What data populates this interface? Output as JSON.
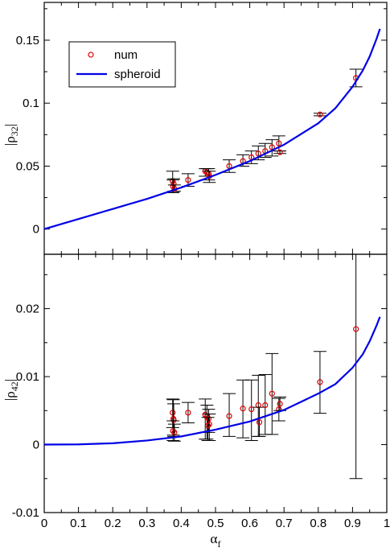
{
  "chart_data": [
    {
      "type": "scatter",
      "panel": "top",
      "title": "",
      "xlabel": "αf",
      "ylabel": "|ρ32|",
      "xlim": [
        0,
        1
      ],
      "ylim": [
        -0.02,
        0.18
      ],
      "xticks": [
        "",
        "",
        "",
        "",
        "",
        "",
        "",
        "",
        "",
        "",
        ""
      ],
      "yticks": [
        {
          "v": 0,
          "label": "0"
        },
        {
          "v": 0.05,
          "label": "0.05"
        },
        {
          "v": 0.1,
          "label": "0.1"
        },
        {
          "v": 0.15,
          "label": "0.15"
        }
      ],
      "legend": {
        "position": "top-left",
        "entries": [
          {
            "label": "num",
            "kind": "marker",
            "color": "#e00000"
          },
          {
            "label": "spheroid",
            "kind": "line",
            "color": "#0000e6"
          }
        ]
      },
      "series": [
        {
          "name": "num",
          "kind": "scatter-errorbars",
          "color": "#e00000",
          "points": [
            {
              "x": 0.375,
              "y": 0.038,
              "lo": 0.029,
              "hi": 0.046
            },
            {
              "x": 0.378,
              "y": 0.036,
              "lo": 0.03,
              "hi": 0.04
            },
            {
              "x": 0.376,
              "y": 0.034,
              "lo": 0.029,
              "hi": 0.039
            },
            {
              "x": 0.38,
              "y": 0.032,
              "lo": 0.03,
              "hi": 0.035
            },
            {
              "x": 0.42,
              "y": 0.039,
              "lo": 0.034,
              "hi": 0.044
            },
            {
              "x": 0.47,
              "y": 0.046,
              "lo": 0.042,
              "hi": 0.048
            },
            {
              "x": 0.475,
              "y": 0.045,
              "lo": 0.042,
              "hi": 0.048
            },
            {
              "x": 0.48,
              "y": 0.044,
              "lo": 0.039,
              "hi": 0.048
            },
            {
              "x": 0.482,
              "y": 0.042,
              "lo": 0.037,
              "hi": 0.046
            },
            {
              "x": 0.54,
              "y": 0.05,
              "lo": 0.045,
              "hi": 0.055
            },
            {
              "x": 0.58,
              "y": 0.054,
              "lo": 0.05,
              "hi": 0.059
            },
            {
              "x": 0.605,
              "y": 0.057,
              "lo": 0.052,
              "hi": 0.062
            },
            {
              "x": 0.625,
              "y": 0.06,
              "lo": 0.055,
              "hi": 0.066
            },
            {
              "x": 0.645,
              "y": 0.062,
              "lo": 0.057,
              "hi": 0.068
            },
            {
              "x": 0.665,
              "y": 0.065,
              "lo": 0.058,
              "hi": 0.071
            },
            {
              "x": 0.685,
              "y": 0.068,
              "lo": 0.062,
              "hi": 0.074
            },
            {
              "x": 0.688,
              "y": 0.061,
              "lo": 0.06,
              "hi": 0.062
            },
            {
              "x": 0.805,
              "y": 0.091,
              "lo": 0.09,
              "hi": 0.092
            },
            {
              "x": 0.91,
              "y": 0.12,
              "lo": 0.113,
              "hi": 0.127
            }
          ]
        },
        {
          "name": "spheroid",
          "kind": "line",
          "color": "#0000e6",
          "x": [
            0,
            0.1,
            0.2,
            0.3,
            0.4,
            0.5,
            0.6,
            0.7,
            0.8,
            0.85,
            0.9,
            0.93,
            0.95,
            0.97,
            0.98
          ],
          "y": [
            0,
            0.008,
            0.016,
            0.024,
            0.033,
            0.043,
            0.054,
            0.067,
            0.084,
            0.096,
            0.113,
            0.126,
            0.137,
            0.151,
            0.159
          ]
        }
      ]
    },
    {
      "type": "scatter",
      "panel": "bottom",
      "title": "",
      "xlabel": "αf",
      "ylabel": "|ρ42|",
      "xlim": [
        0,
        1
      ],
      "ylim": [
        -0.01,
        0.028
      ],
      "xticks": [
        "0",
        "0.1",
        "0.2",
        "0.3",
        "0.4",
        "0.5",
        "0.6",
        "0.7",
        "0.8",
        "0.9",
        "1"
      ],
      "yticks": [
        {
          "v": -0.01,
          "label": "-0.01"
        },
        {
          "v": 0,
          "label": "0"
        },
        {
          "v": 0.01,
          "label": "0.01"
        },
        {
          "v": 0.02,
          "label": "0.02"
        }
      ],
      "series": [
        {
          "name": "num",
          "kind": "scatter-errorbars",
          "color": "#e00000",
          "points": [
            {
              "x": 0.375,
              "y": 0.0047,
              "lo": 0.0025,
              "hi": 0.0067
            },
            {
              "x": 0.377,
              "y": 0.0038,
              "lo": 0.0014,
              "hi": 0.0066
            },
            {
              "x": 0.378,
              "y": 0.0036,
              "lo": 0.0012,
              "hi": 0.006
            },
            {
              "x": 0.376,
              "y": 0.002,
              "lo": 0.0006,
              "hi": 0.0035
            },
            {
              "x": 0.38,
              "y": 0.0018,
              "lo": 0.0005,
              "hi": 0.003
            },
            {
              "x": 0.42,
              "y": 0.0047,
              "lo": 0.0032,
              "hi": 0.0062
            },
            {
              "x": 0.47,
              "y": 0.0044,
              "lo": 0.0008,
              "hi": 0.0067
            },
            {
              "x": 0.475,
              "y": 0.0041,
              "lo": 0.0008,
              "hi": 0.0058
            },
            {
              "x": 0.48,
              "y": 0.0038,
              "lo": 0.0018,
              "hi": 0.0052
            },
            {
              "x": 0.482,
              "y": 0.003,
              "lo": 0.0006,
              "hi": 0.0045
            },
            {
              "x": 0.478,
              "y": 0.0028,
              "lo": 0.0006,
              "hi": 0.004
            },
            {
              "x": 0.54,
              "y": 0.0042,
              "lo": 0.0012,
              "hi": 0.0075
            },
            {
              "x": 0.58,
              "y": 0.0053,
              "lo": 0.001,
              "hi": 0.0095
            },
            {
              "x": 0.605,
              "y": 0.0052,
              "lo": 0.0006,
              "hi": 0.0095
            },
            {
              "x": 0.625,
              "y": 0.0058,
              "lo": 0.0012,
              "hi": 0.0102
            },
            {
              "x": 0.628,
              "y": 0.0033,
              "lo": 0.0012,
              "hi": 0.0055
            },
            {
              "x": 0.645,
              "y": 0.0058,
              "lo": 0.0015,
              "hi": 0.0103
            },
            {
              "x": 0.665,
              "y": 0.0075,
              "lo": 0.0015,
              "hi": 0.0134
            },
            {
              "x": 0.685,
              "y": 0.0052,
              "lo": 0.0035,
              "hi": 0.0068
            },
            {
              "x": 0.688,
              "y": 0.006,
              "lo": 0.005,
              "hi": 0.007
            },
            {
              "x": 0.805,
              "y": 0.0092,
              "lo": 0.0046,
              "hi": 0.0137
            },
            {
              "x": 0.91,
              "y": 0.017,
              "lo": -0.005,
              "hi": 0.039
            }
          ]
        },
        {
          "name": "spheroid",
          "kind": "line",
          "color": "#0000e6",
          "x": [
            0,
            0.1,
            0.2,
            0.3,
            0.4,
            0.5,
            0.6,
            0.7,
            0.8,
            0.85,
            0.9,
            0.93,
            0.95,
            0.97,
            0.98
          ],
          "y": [
            0,
            3e-05,
            0.0002,
            0.0006,
            0.0012,
            0.0022,
            0.0034,
            0.0051,
            0.0075,
            0.0089,
            0.0113,
            0.0133,
            0.0152,
            0.0175,
            0.0188
          ]
        }
      ]
    }
  ]
}
